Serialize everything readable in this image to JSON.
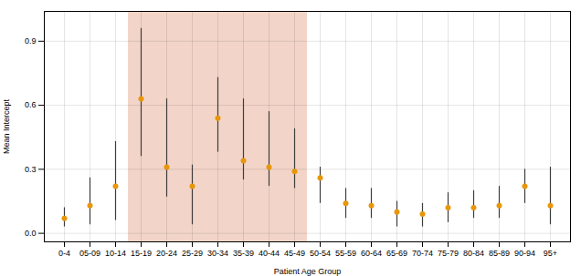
{
  "chart_data": {
    "type": "dot",
    "xlabel": "Patient Age Group",
    "ylabel": "Mean Intercept",
    "categories": [
      "0-4",
      "05-09",
      "10-14",
      "15-19",
      "20-24",
      "25-29",
      "30-34",
      "35-39",
      "40-44",
      "45-49",
      "50-54",
      "55-59",
      "60-64",
      "65-69",
      "70-74",
      "75-79",
      "80-84",
      "85-89",
      "90-94",
      "95+"
    ],
    "values": [
      0.07,
      0.13,
      0.22,
      0.63,
      0.31,
      0.22,
      0.54,
      0.34,
      0.31,
      0.29,
      0.26,
      0.14,
      0.13,
      0.1,
      0.09,
      0.12,
      0.12,
      0.13,
      0.22,
      0.13
    ],
    "error_bars": {
      "low": [
        0.03,
        0.04,
        0.06,
        0.36,
        0.17,
        0.04,
        0.38,
        0.25,
        0.22,
        0.21,
        0.14,
        0.07,
        0.07,
        0.03,
        0.03,
        0.05,
        0.07,
        0.07,
        0.14,
        0.04
      ],
      "high": [
        0.12,
        0.26,
        0.43,
        0.96,
        0.63,
        0.32,
        0.73,
        0.63,
        0.57,
        0.49,
        0.31,
        0.21,
        0.21,
        0.15,
        0.14,
        0.19,
        0.2,
        0.22,
        0.3,
        0.31
      ],
      "color": "#3d3d3d"
    },
    "color": "#e8960a",
    "marker": "circle",
    "highlight": {
      "from": "15-19",
      "to": "45-49",
      "color": "#f2d5c8"
    },
    "ylim": [
      -0.04,
      1.04
    ],
    "yticks": [
      {
        "value": 0,
        "label": "0.0"
      },
      0.3,
      0.6,
      0.9
    ],
    "grid": true
  }
}
